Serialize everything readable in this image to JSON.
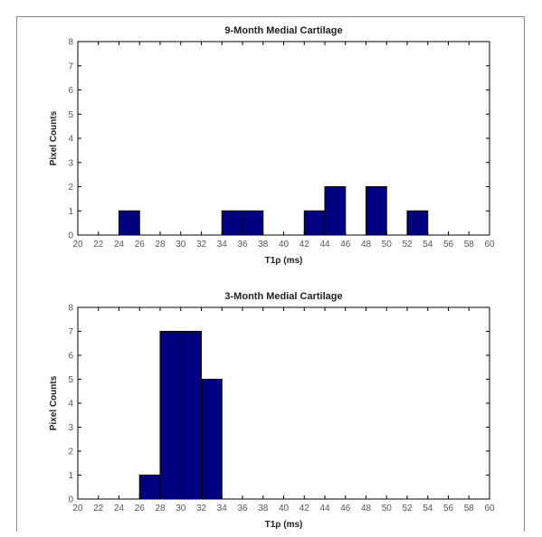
{
  "chart_data": [
    {
      "type": "bar",
      "title": "9-Month Medial Cartilage",
      "xlabel": "T1ρ (ms)",
      "ylabel": "Pixel Counts",
      "xlim": [
        20,
        60
      ],
      "ylim": [
        0,
        8
      ],
      "xticks": [
        "20",
        "22",
        "24",
        "26",
        "28",
        "30",
        "32",
        "34",
        "36",
        "38",
        "40",
        "42",
        "44",
        "46",
        "48",
        "50",
        "52",
        "54",
        "56",
        "58",
        "60"
      ],
      "yticks": [
        "0",
        "1",
        "2",
        "3",
        "4",
        "5",
        "6",
        "7",
        "8"
      ],
      "bin_width": 2,
      "bins": [
        {
          "x": 25,
          "value": 1
        },
        {
          "x": 35,
          "value": 1
        },
        {
          "x": 37,
          "value": 1
        },
        {
          "x": 43,
          "value": 1
        },
        {
          "x": 45,
          "value": 2
        },
        {
          "x": 49,
          "value": 2
        },
        {
          "x": 53,
          "value": 1
        }
      ],
      "bar_color": "#000080"
    },
    {
      "type": "bar",
      "title": "3-Month Medial Cartilage",
      "xlabel": "T1ρ (ms)",
      "ylabel": "Pixel Counts",
      "xlim": [
        20,
        60
      ],
      "ylim": [
        0,
        8
      ],
      "xticks": [
        "20",
        "22",
        "24",
        "26",
        "28",
        "30",
        "32",
        "34",
        "36",
        "38",
        "40",
        "42",
        "44",
        "46",
        "48",
        "50",
        "52",
        "54",
        "56",
        "58",
        "60"
      ],
      "yticks": [
        "0",
        "1",
        "2",
        "3",
        "4",
        "5",
        "6",
        "7",
        "8"
      ],
      "bin_width": 2,
      "bins": [
        {
          "x": 27,
          "value": 1
        },
        {
          "x": 29,
          "value": 7
        },
        {
          "x": 31,
          "value": 7
        },
        {
          "x": 33,
          "value": 5
        }
      ],
      "bar_color": "#000080"
    }
  ]
}
